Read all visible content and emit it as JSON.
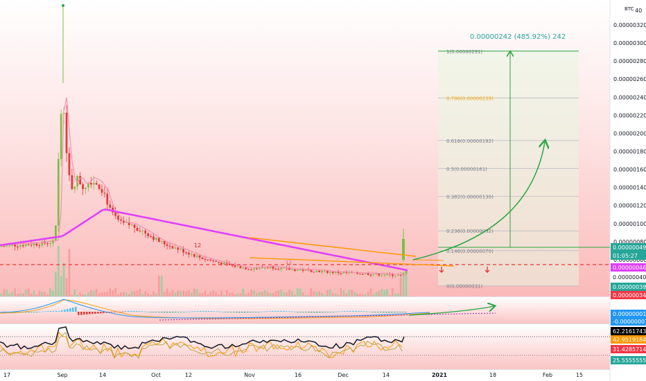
{
  "chart_data": {
    "type": "candlestick",
    "currency_label": "BTC",
    "top_right_value": "40",
    "y_axis_ticks": [
      "0.00000320",
      "0.00000300",
      "0.00000280",
      "0.00000260",
      "0.00000240",
      "0.00000220",
      "0.00000200",
      "0.00000180",
      "0.00000160",
      "0.00000140",
      "0.00000120",
      "0.00000100",
      "0.00000080",
      "0.00000060",
      "0.00000040"
    ],
    "price_tags": [
      {
        "label": "0.00000049",
        "color": "#26a69a",
        "y": 4.9e-07
      },
      {
        "label": "01:05:27",
        "color": "#26a69a",
        "y": 4.55e-07
      },
      {
        "label": "0.00000046",
        "color": "#e040fb",
        "y": 4.6e-07
      },
      {
        "label": "0.00000040",
        "color": "#ffffff",
        "y": 4e-07
      }
    ],
    "volume_tags": [
      {
        "label": "0.00000039",
        "color": "#26a69a"
      },
      {
        "label": "0.00000034",
        "color": "#f23645"
      }
    ],
    "macd_tags": [
      {
        "label": "0.00000001",
        "color": "#2196f3"
      },
      {
        "label": "-0.00000001",
        "color": "#2196f3"
      }
    ],
    "rsi_tags": [
      {
        "label": "62.21617434",
        "color": "#000000"
      },
      {
        "label": "42.95191841",
        "color": "#ff9800"
      },
      {
        "label": "31.42857143",
        "color": "#f23645"
      },
      {
        "label": "25.55555556",
        "color": "#26a69a"
      }
    ],
    "x_axis_labels": [
      "17",
      "Sep",
      "14",
      "Oct",
      "12",
      "Nov",
      "16",
      "Dec",
      "14",
      "2021",
      "18",
      "Feb",
      "15"
    ],
    "projection_label": "0.00000242 (485.92%) 242",
    "fib_levels": [
      {
        "label": "1(0.00000291)",
        "price": 2.91e-06
      },
      {
        "label": "0.786(0.00000239)",
        "price": 2.39e-06
      },
      {
        "label": "0.618(0.00000192)",
        "price": 1.92e-06
      },
      {
        "label": "0.5(0.00000161)",
        "price": 1.61e-06
      },
      {
        "label": "0.382(0.00000130)",
        "price": 1.3e-06
      },
      {
        "label": "0.236(0.00000092)",
        "price": 9.2e-07
      },
      {
        "label": "0.146(0.00000070)",
        "price": 7e-07
      },
      {
        "label": "0(0.00000031)",
        "price": 3.1e-07
      }
    ],
    "candle_markers": [
      "12",
      "13"
    ],
    "ylim": [
      3.4e-07,
      3.35e-06
    ]
  }
}
